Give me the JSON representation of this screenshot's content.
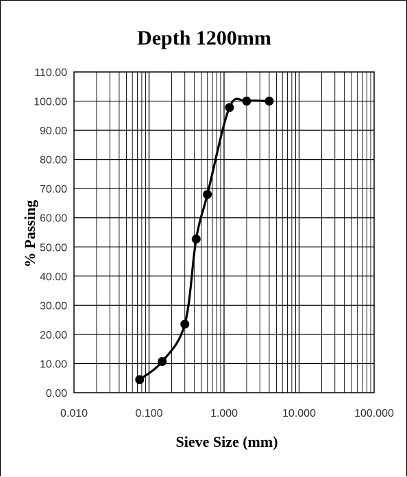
{
  "chart_data": {
    "type": "scatter",
    "title": "Depth 1200mm",
    "xlabel": "Sieve Size (mm)",
    "ylabel": "% Passing",
    "x_scale": "log",
    "xlim": [
      0.01,
      100
    ],
    "ylim": [
      0,
      110
    ],
    "x_ticks": [
      "0.010",
      "0.100",
      "1.000",
      "10.000",
      "100.000"
    ],
    "y_ticks": [
      "0.00",
      "10.00",
      "20.00",
      "30.00",
      "40.00",
      "50.00",
      "60.00",
      "70.00",
      "80.00",
      "90.00",
      "100.00",
      "110.00"
    ],
    "grid": true,
    "legend": "none",
    "line_color": "#000000",
    "marker_color": "#000000",
    "series": [
      {
        "x": [
          0.075,
          0.15,
          0.3,
          0.425,
          0.6,
          1.18,
          2.0,
          4.0
        ],
        "y": [
          4.5,
          10.7,
          23.5,
          52.7,
          68.0,
          97.8,
          100.0,
          100.0
        ]
      }
    ]
  }
}
